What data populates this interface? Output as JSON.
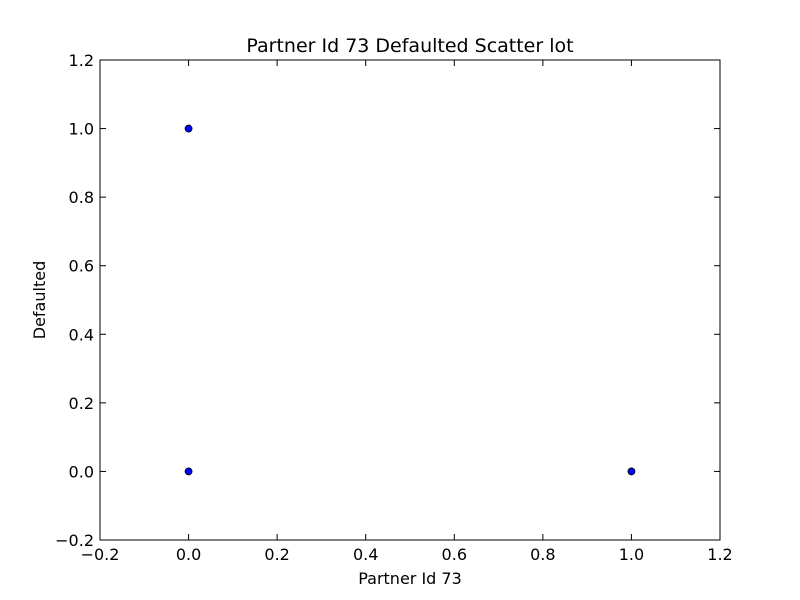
{
  "chart_data": {
    "type": "scatter",
    "title": "Partner Id 73 Defaulted Scatter lot",
    "xlabel": "Partner Id 73",
    "ylabel": "Defaulted",
    "xlim": [
      -0.2,
      1.2
    ],
    "ylim": [
      -0.2,
      1.2
    ],
    "x_ticks": [
      "−0.2",
      "0.0",
      "0.2",
      "0.4",
      "0.6",
      "0.8",
      "1.0",
      "1.2"
    ],
    "y_ticks": [
      "−0.2",
      "0.0",
      "0.2",
      "0.4",
      "0.6",
      "0.8",
      "1.0",
      "1.2"
    ],
    "x_tick_values": [
      -0.2,
      0.0,
      0.2,
      0.4,
      0.6,
      0.8,
      1.0,
      1.2
    ],
    "y_tick_values": [
      -0.2,
      0.0,
      0.2,
      0.4,
      0.6,
      0.8,
      1.0,
      1.2
    ],
    "grid": false,
    "series": [
      {
        "points": [
          {
            "x": 0.0,
            "y": 1.0
          },
          {
            "x": 0.0,
            "y": 0.0
          },
          {
            "x": 1.0,
            "y": 0.0
          }
        ],
        "color": "#0000ff"
      }
    ]
  }
}
